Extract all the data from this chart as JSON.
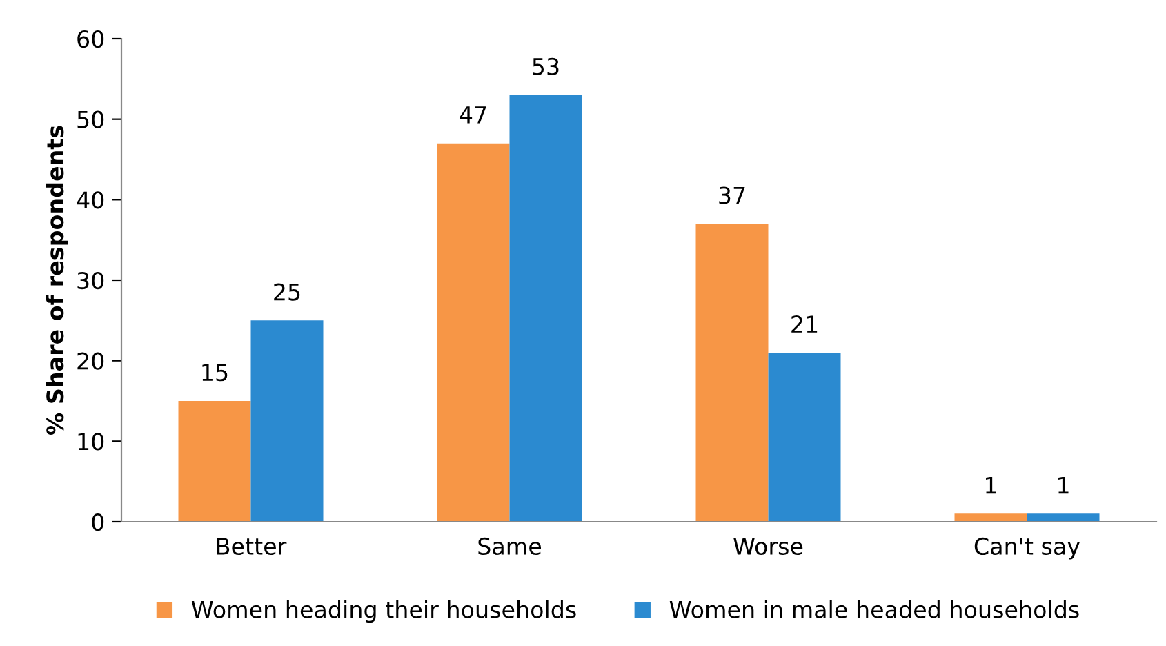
{
  "chart_data": {
    "type": "bar",
    "ylabel": "% Share of respondents",
    "categories": [
      "Better",
      "Same",
      "Worse",
      "Can't say"
    ],
    "series": [
      {
        "name": "Women heading their households",
        "color": "#f79646",
        "values": [
          15,
          47,
          37,
          1
        ]
      },
      {
        "name": "Women in male headed households",
        "color": "#2b8ad0",
        "values": [
          25,
          53,
          21,
          1
        ]
      }
    ],
    "ylim": [
      0,
      60
    ],
    "yticks": [
      0,
      10,
      20,
      30,
      40,
      50,
      60
    ],
    "data_labels": true,
    "legend": "bottom",
    "grid": false
  }
}
